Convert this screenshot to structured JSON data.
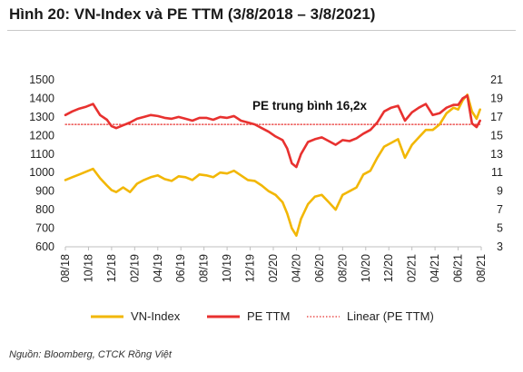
{
  "header": {
    "title": "Hình 20: VN-Index và PE TTM (3/8/2018 – 3/8/2021)"
  },
  "footer": {
    "source": "Nguồn: Bloomberg, CTCK Rồng Việt"
  },
  "colors": {
    "vnindex": "#f2b705",
    "pe": "#e8312f",
    "linear": "#e8312f"
  },
  "chart_data": {
    "type": "line",
    "x_tick_labels": [
      "08/18",
      "10/18",
      "12/18",
      "02/19",
      "04/19",
      "06/19",
      "08/19",
      "10/19",
      "12/19",
      "02/20",
      "04/20",
      "06/20",
      "08/20",
      "10/20",
      "12/20",
      "02/21",
      "04/21",
      "06/21",
      "08/21"
    ],
    "y_left": {
      "ylim": [
        600,
        1500
      ],
      "ticks": [
        600,
        700,
        800,
        900,
        1000,
        1100,
        1200,
        1300,
        1400,
        1500
      ]
    },
    "y_right": {
      "ylim": [
        3,
        21
      ],
      "ticks": [
        3,
        5,
        7,
        9,
        11,
        13,
        15,
        17,
        19,
        21
      ]
    },
    "annotation": "PE trung bình 16,2x",
    "legend": [
      "VN-Index",
      "PE TTM",
      "Linear (PE TTM)"
    ],
    "series": [
      {
        "name": "VN-Index",
        "axis": "left",
        "x": [
          0,
          0.3,
          0.6,
          0.9,
          1.2,
          1.5,
          1.8,
          2.0,
          2.2,
          2.5,
          2.8,
          3.1,
          3.4,
          3.7,
          4.0,
          4.3,
          4.6,
          4.9,
          5.2,
          5.5,
          5.8,
          6.1,
          6.4,
          6.7,
          7.0,
          7.3,
          7.6,
          7.9,
          8.2,
          8.5,
          8.8,
          9.1,
          9.4,
          9.6,
          9.8,
          10.0,
          10.2,
          10.5,
          10.8,
          11.1,
          11.4,
          11.7,
          12.0,
          12.3,
          12.6,
          12.9,
          13.2,
          13.5,
          13.8,
          14.1,
          14.4,
          14.7,
          15.0,
          15.3,
          15.6,
          15.9,
          16.2,
          16.5,
          16.8,
          17.0,
          17.2,
          17.4,
          17.6,
          17.8,
          17.95
        ],
        "values": [
          960,
          975,
          990,
          1005,
          1020,
          970,
          930,
          905,
          895,
          920,
          895,
          940,
          960,
          975,
          985,
          965,
          955,
          980,
          975,
          960,
          990,
          985,
          975,
          1000,
          995,
          1010,
          985,
          960,
          955,
          930,
          900,
          880,
          840,
          780,
          700,
          660,
          750,
          830,
          870,
          880,
          840,
          800,
          880,
          900,
          920,
          990,
          1010,
          1080,
          1140,
          1160,
          1180,
          1080,
          1150,
          1190,
          1230,
          1230,
          1260,
          1320,
          1350,
          1340,
          1390,
          1420,
          1330,
          1290,
          1340
        ]
      },
      {
        "name": "PE TTM",
        "axis": "right",
        "x": [
          0,
          0.3,
          0.6,
          0.9,
          1.2,
          1.5,
          1.8,
          2.0,
          2.2,
          2.5,
          2.8,
          3.1,
          3.4,
          3.7,
          4.0,
          4.3,
          4.6,
          4.9,
          5.2,
          5.5,
          5.8,
          6.1,
          6.4,
          6.7,
          7.0,
          7.3,
          7.6,
          7.9,
          8.2,
          8.5,
          8.8,
          9.1,
          9.4,
          9.6,
          9.8,
          10.0,
          10.2,
          10.5,
          10.8,
          11.1,
          11.4,
          11.7,
          12.0,
          12.3,
          12.6,
          12.9,
          13.2,
          13.5,
          13.8,
          14.1,
          14.4,
          14.7,
          15.0,
          15.3,
          15.6,
          15.9,
          16.2,
          16.5,
          16.8,
          17.0,
          17.2,
          17.4,
          17.6,
          17.8,
          17.95
        ],
        "values": [
          17.2,
          17.6,
          17.9,
          18.1,
          18.4,
          17.2,
          16.7,
          16.0,
          15.8,
          16.1,
          16.4,
          16.8,
          17.0,
          17.2,
          17.1,
          16.9,
          16.8,
          17.0,
          16.8,
          16.6,
          16.9,
          16.9,
          16.7,
          17.0,
          16.9,
          17.1,
          16.6,
          16.4,
          16.2,
          15.8,
          15.4,
          14.9,
          14.5,
          13.6,
          12.0,
          11.6,
          13.0,
          14.3,
          14.6,
          14.8,
          14.4,
          14.0,
          14.5,
          14.4,
          14.7,
          15.2,
          15.6,
          16.4,
          17.6,
          18.0,
          18.2,
          16.6,
          17.5,
          18.0,
          18.4,
          17.2,
          17.4,
          18.0,
          18.3,
          18.3,
          19.0,
          19.3,
          16.3,
          15.9,
          16.6
        ]
      },
      {
        "name": "Linear (PE TTM)",
        "axis": "right",
        "x": [
          0,
          17.95
        ],
        "values": [
          16.2,
          16.2
        ]
      }
    ]
  }
}
